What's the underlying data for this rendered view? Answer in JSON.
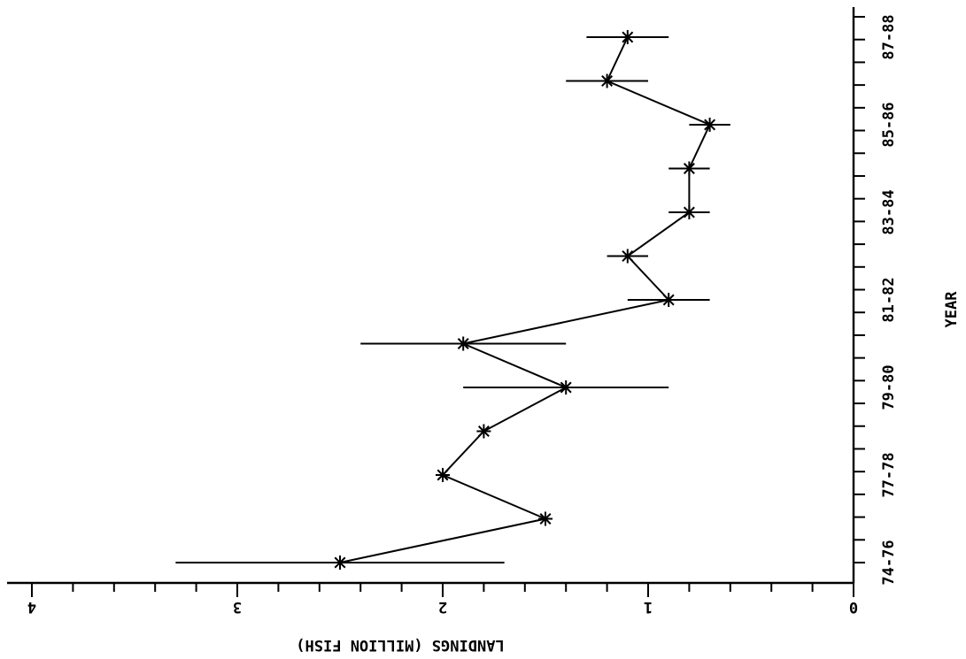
{
  "chart_data": {
    "type": "line",
    "orientation": "rotated-90-clockwise",
    "xlabel": "YEAR",
    "ylabel": "LANDINGS (MILLION FISH)",
    "ylim": [
      0,
      4
    ],
    "y_ticks": [
      "0",
      "1",
      "2",
      "3",
      "4"
    ],
    "x_tick_labels": [
      "74-76",
      "77-78",
      "79-80",
      "81-82",
      "83-84",
      "85-86",
      "87-88"
    ],
    "x_tick_label_positions": [
      0,
      2,
      4,
      6,
      8,
      10,
      12
    ],
    "x_minor_ticks": 25,
    "marker": "asterisk",
    "grid": false,
    "series": [
      {
        "points": [
          {
            "x": 0,
            "y": 2.5,
            "lo": 1.7,
            "hi": 3.3
          },
          {
            "x": 1,
            "y": 1.5
          },
          {
            "x": 2,
            "y": 2.0
          },
          {
            "x": 3,
            "y": 1.8
          },
          {
            "x": 4,
            "y": 1.4,
            "lo": 0.9,
            "hi": 1.9
          },
          {
            "x": 5,
            "y": 1.9,
            "lo": 1.4,
            "hi": 2.4
          },
          {
            "x": 6,
            "y": 0.9,
            "lo": 0.7,
            "hi": 1.1
          },
          {
            "x": 7,
            "y": 1.1,
            "lo": 1.0,
            "hi": 1.2
          },
          {
            "x": 8,
            "y": 0.8,
            "lo": 0.7,
            "hi": 0.9
          },
          {
            "x": 9,
            "y": 0.8,
            "lo": 0.7,
            "hi": 0.9
          },
          {
            "x": 10,
            "y": 0.7,
            "lo": 0.6,
            "hi": 0.8
          },
          {
            "x": 11,
            "y": 1.2,
            "lo": 1.0,
            "hi": 1.4
          },
          {
            "x": 12,
            "y": 1.1,
            "lo": 0.9,
            "hi": 1.3
          }
        ]
      }
    ]
  }
}
